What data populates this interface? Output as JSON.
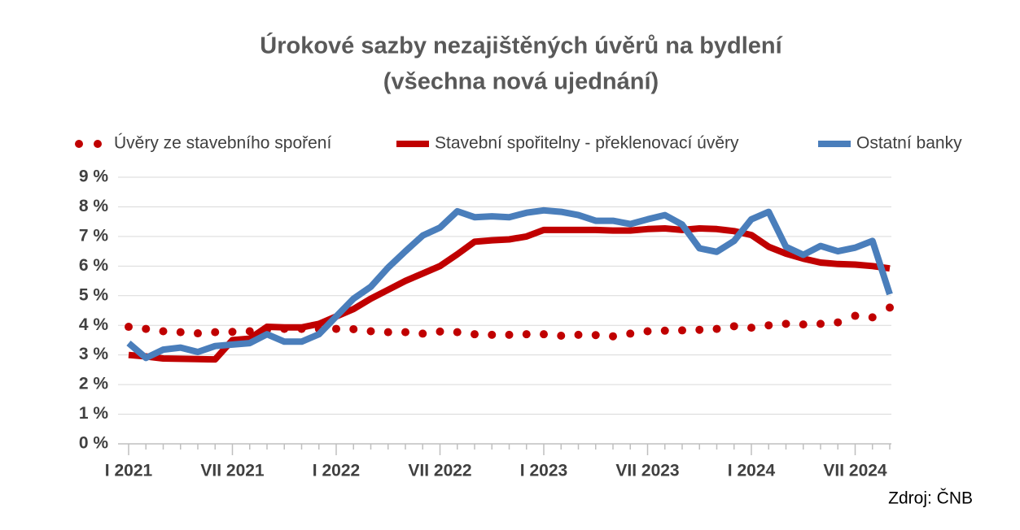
{
  "chart_data": {
    "type": "line",
    "title": [
      "Úrokové sazby nezajištěných úvěrů na bydlení",
      "(všechna nová ujednání)"
    ],
    "annotation": "Zdroj: ČNB",
    "categories": [
      "I 2021",
      null,
      null,
      null,
      null,
      null,
      "VII 2021",
      null,
      null,
      null,
      null,
      null,
      "I 2022",
      null,
      null,
      null,
      null,
      null,
      "VII 2022",
      null,
      null,
      null,
      null,
      null,
      "I 2023",
      null,
      null,
      null,
      null,
      null,
      "VII 2023",
      null,
      null,
      null,
      null,
      null,
      "I 2024",
      null,
      null,
      null,
      null,
      null,
      "VII 2024",
      null,
      null
    ],
    "series": [
      {
        "name": "Úvěry ze stavebního spoření",
        "color": "#c00000",
        "style": "dots",
        "values": [
          3.95,
          3.88,
          3.8,
          3.77,
          3.73,
          3.77,
          3.78,
          3.8,
          3.85,
          3.88,
          3.88,
          3.88,
          3.88,
          3.87,
          3.8,
          3.77,
          3.77,
          3.72,
          3.79,
          3.77,
          3.7,
          3.68,
          3.68,
          3.7,
          3.7,
          3.65,
          3.68,
          3.67,
          3.63,
          3.72,
          3.8,
          3.82,
          3.83,
          3.85,
          3.88,
          3.97,
          3.92,
          4.0,
          4.05,
          4.03,
          4.05,
          4.1,
          4.32,
          4.27,
          4.6
        ]
      },
      {
        "name": "Stavební spořitelny - překlenovací úvěry",
        "color": "#c00000",
        "style": "line",
        "values": [
          3.0,
          2.95,
          2.88,
          2.87,
          2.86,
          2.85,
          3.5,
          3.55,
          3.95,
          3.93,
          3.93,
          4.05,
          4.3,
          4.55,
          4.9,
          5.2,
          5.5,
          5.75,
          6.0,
          6.4,
          6.82,
          6.87,
          6.9,
          7.0,
          7.22,
          7.22,
          7.22,
          7.22,
          7.2,
          7.2,
          7.25,
          7.27,
          7.22,
          7.27,
          7.25,
          7.18,
          7.05,
          6.65,
          6.42,
          6.25,
          6.12,
          6.07,
          6.05,
          6.0,
          5.92
        ]
      },
      {
        "name": "Ostatní banky",
        "color": "#4a7ebb",
        "style": "line",
        "values": [
          3.4,
          2.9,
          3.18,
          3.25,
          3.1,
          3.3,
          3.35,
          3.4,
          3.7,
          3.45,
          3.45,
          3.7,
          4.3,
          4.9,
          5.3,
          5.95,
          6.5,
          7.03,
          7.3,
          7.85,
          7.65,
          7.68,
          7.65,
          7.8,
          7.88,
          7.83,
          7.72,
          7.53,
          7.53,
          7.42,
          7.58,
          7.72,
          7.4,
          6.6,
          6.48,
          6.85,
          7.58,
          7.83,
          6.65,
          6.38,
          6.68,
          6.5,
          6.62,
          6.85,
          5.05
        ]
      }
    ],
    "ylim": [
      0,
      9
    ],
    "yticks": [
      {
        "value": 0,
        "label": "0 %"
      },
      {
        "value": 1,
        "label": "1 %"
      },
      {
        "value": 2,
        "label": "2 %"
      },
      {
        "value": 3,
        "label": "3 %"
      },
      {
        "value": 4,
        "label": "4 %"
      },
      {
        "value": 5,
        "label": "5 %"
      },
      {
        "value": 6,
        "label": "6 %"
      },
      {
        "value": 7,
        "label": "7 %"
      },
      {
        "value": 8,
        "label": "8 %"
      },
      {
        "value": 9,
        "label": "9 %"
      }
    ],
    "grid": true,
    "legend": "top"
  }
}
